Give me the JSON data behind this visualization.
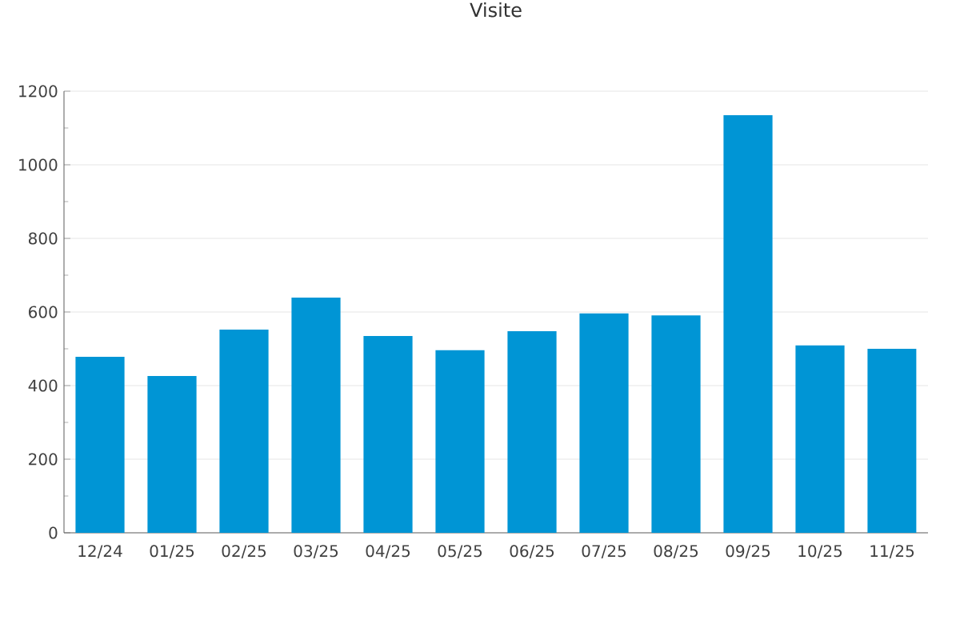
{
  "chart_data": {
    "type": "bar",
    "title": "Visite",
    "categories": [
      "12/24",
      "01/25",
      "02/25",
      "03/25",
      "04/25",
      "05/25",
      "06/25",
      "07/25",
      "08/25",
      "09/25",
      "10/25",
      "11/25"
    ],
    "values": [
      478,
      426,
      552,
      639,
      535,
      496,
      548,
      596,
      591,
      1135,
      509,
      500
    ],
    "color": "#0095d5",
    "ylim": [
      0,
      1200
    ],
    "yticks": [
      0,
      200,
      400,
      600,
      800,
      1000,
      1200
    ],
    "grid": "y"
  }
}
